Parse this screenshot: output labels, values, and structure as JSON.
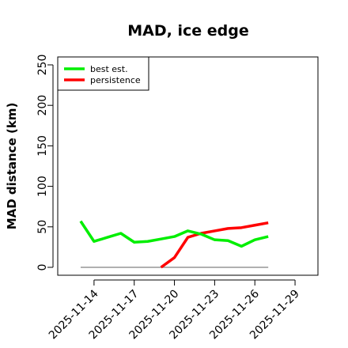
{
  "chart_data": {
    "type": "line",
    "title": "MAD, ice edge",
    "xlabel": "",
    "ylabel": "MAD distance (km)",
    "xlim": [
      "2025-11-12",
      "2025-11-30"
    ],
    "ylim": [
      0,
      250
    ],
    "yticks": [
      0,
      50,
      100,
      150,
      200,
      250
    ],
    "xticks": [
      "2025-11-14",
      "2025-11-17",
      "2025-11-20",
      "2025-11-23",
      "2025-11-26",
      "2025-11-29"
    ],
    "legend_position": "top-left",
    "grid": false,
    "series": [
      {
        "name": "best est.",
        "color": "#00ee00",
        "x": [
          "2025-11-13",
          "2025-11-14",
          "2025-11-15",
          "2025-11-16",
          "2025-11-17",
          "2025-11-18",
          "2025-11-19",
          "2025-11-20",
          "2025-11-21",
          "2025-11-22",
          "2025-11-23",
          "2025-11-24",
          "2025-11-25",
          "2025-11-26",
          "2025-11-27"
        ],
        "values": [
          57,
          32,
          37,
          42,
          31,
          32,
          35,
          38,
          45,
          41,
          34,
          33,
          26,
          34,
          38
        ]
      },
      {
        "name": "persistence",
        "color": "#ff0000",
        "x": [
          "2025-11-19",
          "2025-11-20",
          "2025-11-21",
          "2025-11-22",
          "2025-11-23",
          "2025-11-24",
          "2025-11-25",
          "2025-11-26",
          "2025-11-27"
        ],
        "values": [
          0,
          12,
          37,
          42,
          45,
          48,
          49,
          52,
          55
        ]
      },
      {
        "name": "",
        "color": "#808080",
        "x": [
          "2025-11-13",
          "2025-11-27"
        ],
        "values": [
          0,
          0
        ]
      }
    ]
  }
}
